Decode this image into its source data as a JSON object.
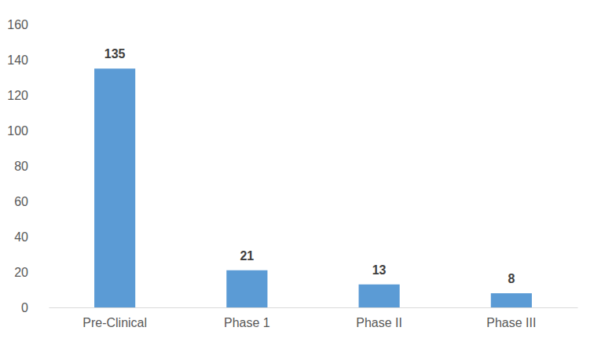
{
  "chart_data": {
    "type": "bar",
    "categories": [
      "Pre-Clinical",
      "Phase 1",
      "Phase II",
      "Phase III"
    ],
    "values": [
      135,
      21,
      13,
      8
    ],
    "color": "#5b9bd5",
    "ylim": [
      0,
      160
    ],
    "yticks": [
      0,
      20,
      40,
      60,
      80,
      100,
      120,
      140,
      160
    ],
    "grid": false,
    "data_labels": true
  }
}
